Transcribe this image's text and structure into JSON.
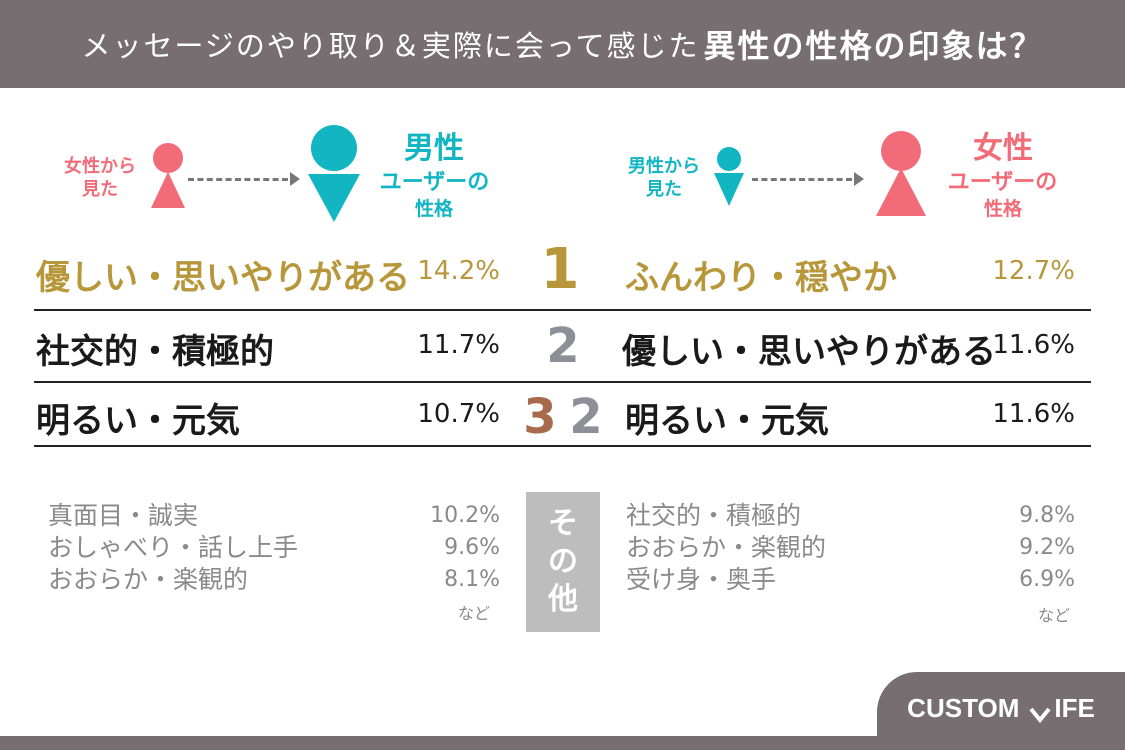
{
  "header": {
    "title_normal": "メッセージのやり取り＆実際に会って感じた",
    "title_bold": "異性の性格の印象は？"
  },
  "left_diagram": {
    "viewer_label_1": "女性から",
    "viewer_label_2": "見た",
    "subject_big": "男性",
    "subject_sub": "ユーザーの",
    "subject_small": "性格"
  },
  "right_diagram": {
    "viewer_label_1": "男性から",
    "viewer_label_2": "見た",
    "subject_big": "女性",
    "subject_sub": "ユーザーの",
    "subject_small": "性格"
  },
  "colors": {
    "pink": "#f26b78",
    "teal": "#12b5c2",
    "gold": "#b7973a",
    "silver": "#8e8e98",
    "bronze": "#a86a4d",
    "header": "#766e70"
  },
  "chart_data": [
    {
      "type": "table",
      "title": "男性ユーザーの性格",
      "rows": [
        {
          "rank": "1",
          "label": "優しい・思いやりがある",
          "value": 14.2,
          "display": "14.2%"
        },
        {
          "rank": "2",
          "label": "社交的・積極的",
          "value": 11.7,
          "display": "11.7%"
        },
        {
          "rank": "3",
          "label": "明るい・元気",
          "value": 10.7,
          "display": "10.7%"
        },
        {
          "rank": "",
          "label": "真面目・誠実",
          "value": 10.2,
          "display": "10.2%"
        },
        {
          "rank": "",
          "label": "おしゃべり・話し上手",
          "value": 9.6,
          "display": "9.6%"
        },
        {
          "rank": "",
          "label": "おおらか・楽観的",
          "value": 8.1,
          "display": "8.1%"
        }
      ]
    },
    {
      "type": "table",
      "title": "女性ユーザーの性格",
      "rows": [
        {
          "rank": "1",
          "label": "ふんわり・穏やか",
          "value": 12.7,
          "display": "12.7%"
        },
        {
          "rank": "2",
          "label": "優しい・思いやりがある",
          "value": 11.6,
          "display": "11.6%"
        },
        {
          "rank": "2",
          "label": "明るい・元気",
          "value": 11.6,
          "display": "11.6%"
        },
        {
          "rank": "",
          "label": "社交的・積極的",
          "value": 9.8,
          "display": "9.8%"
        },
        {
          "rank": "",
          "label": "おおらか・楽観的",
          "value": 9.2,
          "display": "9.2%"
        },
        {
          "rank": "",
          "label": "受け身・奥手",
          "value": 6.9,
          "display": "6.9%"
        }
      ]
    }
  ],
  "others_label": [
    "そ",
    "の",
    "他"
  ],
  "etc_label": "など",
  "logo": {
    "part1": "CUSTOM",
    "part2": "IFE"
  }
}
